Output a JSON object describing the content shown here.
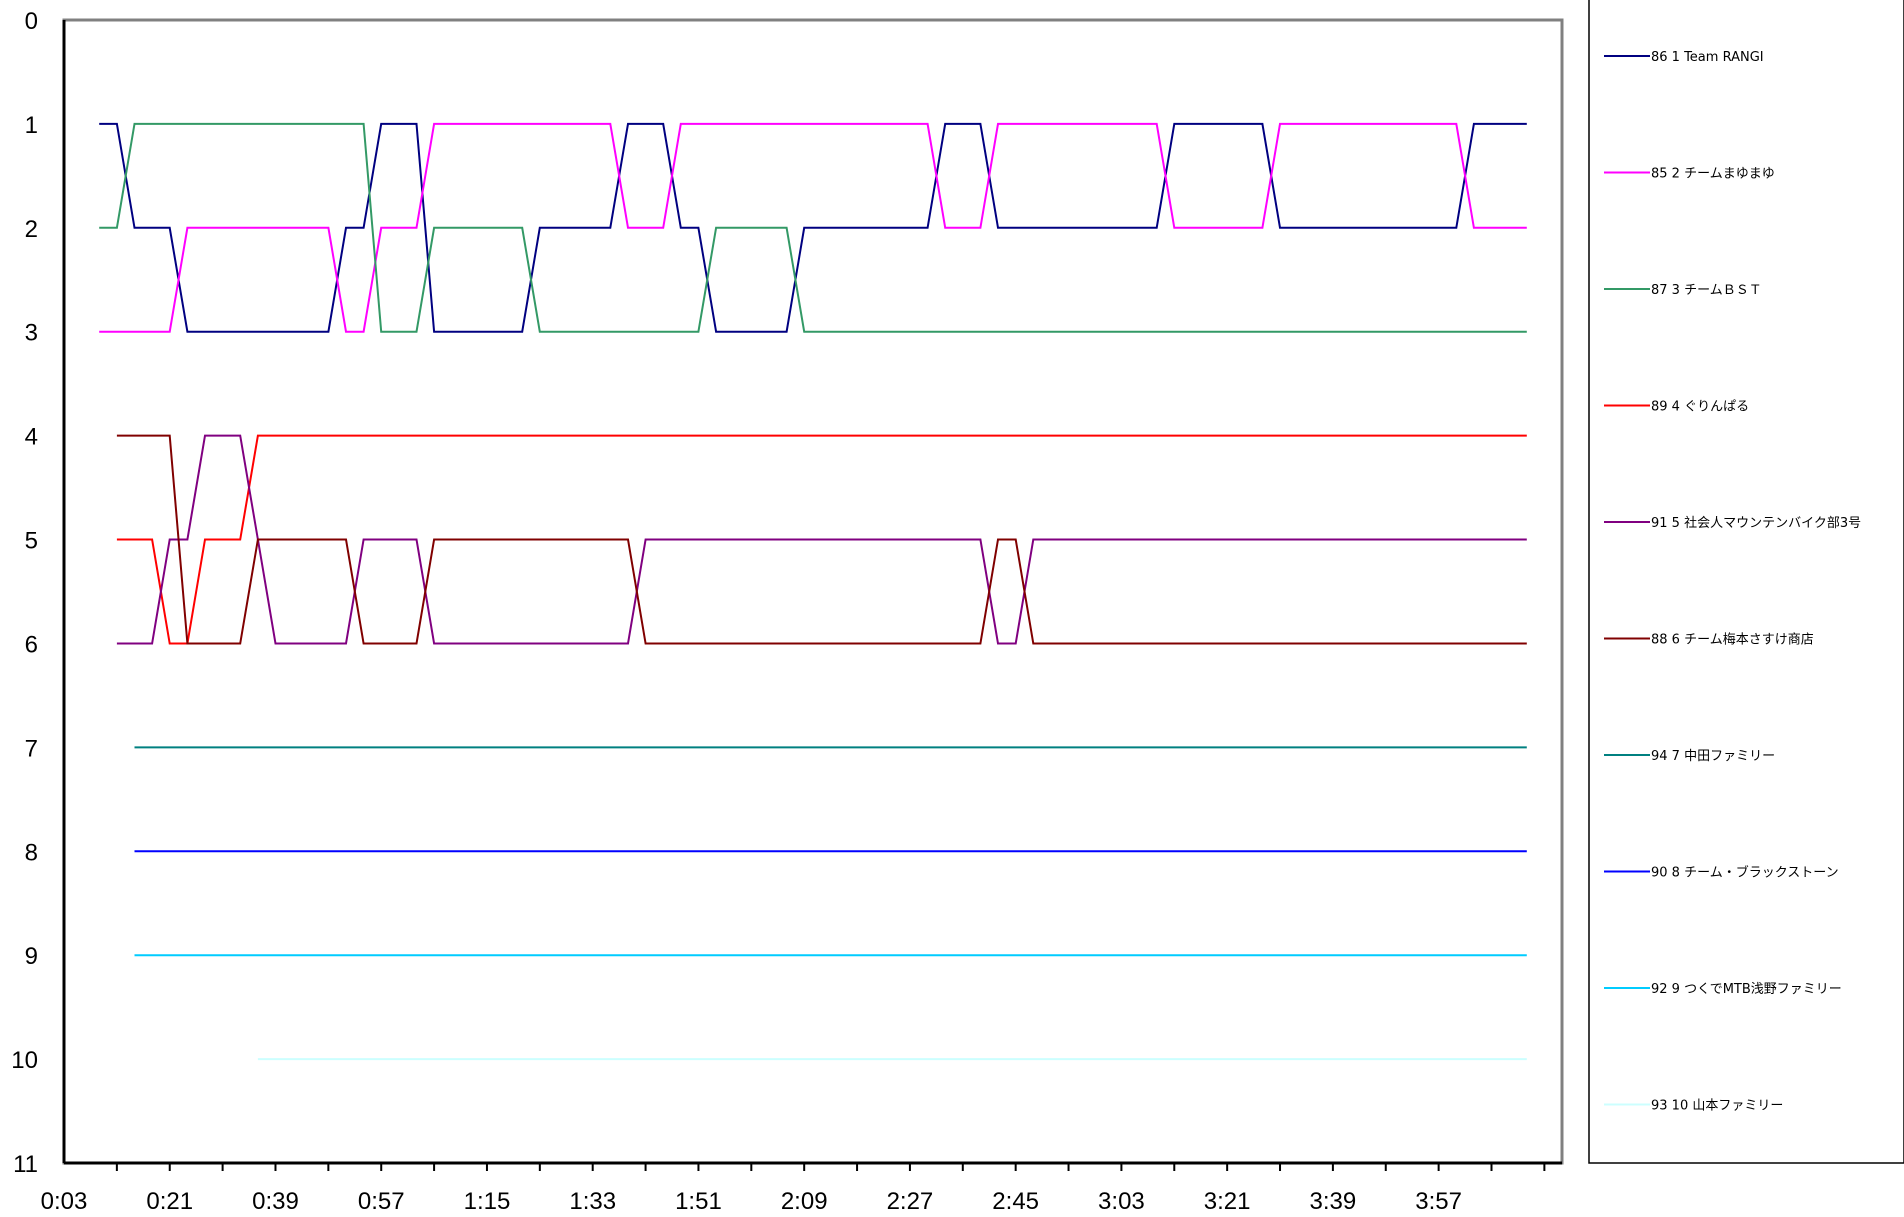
{
  "chart_data": {
    "type": "line",
    "title": "",
    "xlabel": "",
    "ylabel": "",
    "y_inverted": true,
    "ylim": [
      0,
      11
    ],
    "yticks": [
      "0",
      "1",
      "2",
      "3",
      "4",
      "5",
      "6",
      "7",
      "8",
      "9",
      "10",
      "11"
    ],
    "xticks": [
      "0:03",
      "0:21",
      "0:39",
      "0:57",
      "1:15",
      "1:33",
      "1:51",
      "2:09",
      "2:27",
      "2:45",
      "3:03",
      "3:21",
      "3:39",
      "3:57"
    ],
    "legend_position": "right",
    "grid": false,
    "x": [
      "0:09",
      "0:12",
      "0:15",
      "0:18",
      "0:21",
      "0:24",
      "0:27",
      "0:30",
      "0:33",
      "0:36",
      "0:39",
      "0:42",
      "0:45",
      "0:48",
      "0:51",
      "0:54",
      "0:57",
      "1:00",
      "1:03",
      "1:06",
      "1:09",
      "1:12",
      "1:15",
      "1:18",
      "1:21",
      "1:24",
      "1:27",
      "1:30",
      "1:33",
      "1:36",
      "1:39",
      "1:42",
      "1:45",
      "1:48",
      "1:51",
      "1:54",
      "1:57",
      "2:00",
      "2:03",
      "2:06",
      "2:09",
      "2:12",
      "2:15",
      "2:18",
      "2:21",
      "2:24",
      "2:27",
      "2:30",
      "2:33",
      "2:36",
      "2:39",
      "2:42",
      "2:45",
      "2:48",
      "2:51",
      "2:54",
      "2:57",
      "3:00",
      "3:03",
      "3:06",
      "3:09",
      "3:12",
      "3:15",
      "3:18",
      "3:21",
      "3:24",
      "3:27",
      "3:30",
      "3:33",
      "3:36",
      "3:39",
      "3:42",
      "3:45",
      "3:48",
      "3:51",
      "3:54",
      "3:57",
      "4:00",
      "4:03",
      "4:06",
      "4:09",
      "4:12"
    ],
    "series": [
      {
        "name": "86 1 Team RANGI",
        "color": "#000080",
        "values": [
          1,
          1,
          2,
          2,
          2,
          3,
          3,
          3,
          3,
          3,
          3,
          3,
          3,
          3,
          2,
          2,
          1,
          1,
          1,
          3,
          3,
          3,
          3,
          3,
          3,
          2,
          2,
          2,
          2,
          2,
          1,
          1,
          1,
          2,
          2,
          3,
          3,
          3,
          3,
          3,
          2,
          2,
          2,
          2,
          2,
          2,
          2,
          2,
          1,
          1,
          1,
          2,
          2,
          2,
          2,
          2,
          2,
          2,
          2,
          2,
          2,
          1,
          1,
          1,
          1,
          1,
          1,
          2,
          2,
          2,
          2,
          2,
          2,
          2,
          2,
          2,
          2,
          2,
          1,
          1,
          1,
          1
        ]
      },
      {
        "name": "85 2 チームまゆまゆ",
        "color": "#FF00FF",
        "values": [
          3,
          3,
          3,
          3,
          3,
          2,
          2,
          2,
          2,
          2,
          2,
          2,
          2,
          2,
          3,
          3,
          2,
          2,
          2,
          1,
          1,
          1,
          1,
          1,
          1,
          1,
          1,
          1,
          1,
          1,
          2,
          2,
          2,
          1,
          1,
          1,
          1,
          1,
          1,
          1,
          1,
          1,
          1,
          1,
          1,
          1,
          1,
          1,
          2,
          2,
          2,
          1,
          1,
          1,
          1,
          1,
          1,
          1,
          1,
          1,
          1,
          2,
          2,
          2,
          2,
          2,
          2,
          1,
          1,
          1,
          1,
          1,
          1,
          1,
          1,
          1,
          1,
          1,
          2,
          2,
          2,
          2
        ]
      },
      {
        "name": "87 3 チームＢＳＴ",
        "color": "#339966",
        "values": [
          2,
          2,
          1,
          1,
          1,
          1,
          1,
          1,
          1,
          1,
          1,
          1,
          1,
          1,
          1,
          1,
          3,
          3,
          3,
          2,
          2,
          2,
          2,
          2,
          2,
          3,
          3,
          3,
          3,
          3,
          3,
          3,
          3,
          3,
          3,
          2,
          2,
          2,
          2,
          2,
          3,
          3,
          3,
          3,
          3,
          3,
          3,
          3,
          3,
          3,
          3,
          3,
          3,
          3,
          3,
          3,
          3,
          3,
          3,
          3,
          3,
          3,
          3,
          3,
          3,
          3,
          3,
          3,
          3,
          3,
          3,
          3,
          3,
          3,
          3,
          3,
          3,
          3,
          3,
          3,
          3,
          3
        ]
      },
      {
        "name": "89 4 ぐりんぱる",
        "color": "#FF0000",
        "values": [
          null,
          5,
          5,
          5,
          6,
          6,
          5,
          5,
          5,
          4,
          4,
          4,
          4,
          4,
          4,
          4,
          4,
          4,
          4,
          4,
          4,
          4,
          4,
          4,
          4,
          4,
          4,
          4,
          4,
          4,
          4,
          4,
          4,
          4,
          4,
          4,
          4,
          4,
          4,
          4,
          4,
          4,
          4,
          4,
          4,
          4,
          4,
          4,
          4,
          4,
          4,
          4,
          4,
          4,
          4,
          4,
          4,
          4,
          4,
          4,
          4,
          4,
          4,
          4,
          4,
          4,
          4,
          4,
          4,
          4,
          4,
          4,
          4,
          4,
          4,
          4,
          4,
          4,
          4,
          4,
          4,
          4
        ]
      },
      {
        "name": "91 5 社会人マウンテンバイク部3号",
        "color": "#800080",
        "values": [
          null,
          6,
          6,
          6,
          5,
          5,
          4,
          4,
          4,
          5,
          6,
          6,
          6,
          6,
          6,
          5,
          5,
          5,
          5,
          6,
          6,
          6,
          6,
          6,
          6,
          6,
          6,
          6,
          6,
          6,
          6,
          5,
          5,
          5,
          5,
          5,
          5,
          5,
          5,
          5,
          5,
          5,
          5,
          5,
          5,
          5,
          5,
          5,
          5,
          5,
          5,
          6,
          6,
          5,
          5,
          5,
          5,
          5,
          5,
          5,
          5,
          5,
          5,
          5,
          5,
          5,
          5,
          5,
          5,
          5,
          5,
          5,
          5,
          5,
          5,
          5,
          5,
          5,
          5,
          5,
          5,
          5
        ]
      },
      {
        "name": "88 6 チーム梅本さすけ商店",
        "color": "#800000",
        "values": [
          null,
          4,
          4,
          4,
          4,
          6,
          6,
          6,
          6,
          5,
          5,
          5,
          5,
          5,
          5,
          6,
          6,
          6,
          6,
          5,
          5,
          5,
          5,
          5,
          5,
          5,
          5,
          5,
          5,
          5,
          5,
          6,
          6,
          6,
          6,
          6,
          6,
          6,
          6,
          6,
          6,
          6,
          6,
          6,
          6,
          6,
          6,
          6,
          6,
          6,
          6,
          5,
          5,
          6,
          6,
          6,
          6,
          6,
          6,
          6,
          6,
          6,
          6,
          6,
          6,
          6,
          6,
          6,
          6,
          6,
          6,
          6,
          6,
          6,
          6,
          6,
          6,
          6,
          6,
          6,
          6,
          6
        ]
      },
      {
        "name": "94 7 中田ファミリー",
        "color": "#008080",
        "values": [
          null,
          null,
          7,
          7,
          7,
          7,
          7,
          7,
          7,
          7,
          7,
          7,
          7,
          7,
          7,
          7,
          7,
          7,
          7,
          7,
          7,
          7,
          7,
          7,
          7,
          7,
          7,
          7,
          7,
          7,
          7,
          7,
          7,
          7,
          7,
          7,
          7,
          7,
          7,
          7,
          7,
          7,
          7,
          7,
          7,
          7,
          7,
          7,
          7,
          7,
          7,
          7,
          7,
          7,
          7,
          7,
          7,
          7,
          7,
          7,
          7,
          7,
          7,
          7,
          7,
          7,
          7,
          7,
          7,
          7,
          7,
          7,
          7,
          7,
          7,
          7,
          7,
          7,
          7,
          7,
          7,
          7
        ]
      },
      {
        "name": "90 8 チーム・ブラックストーン",
        "color": "#0000FF",
        "values": [
          null,
          null,
          8,
          8,
          8,
          8,
          8,
          8,
          8,
          8,
          8,
          8,
          8,
          8,
          8,
          8,
          8,
          8,
          8,
          8,
          8,
          8,
          8,
          8,
          8,
          8,
          8,
          8,
          8,
          8,
          8,
          8,
          8,
          8,
          8,
          8,
          8,
          8,
          8,
          8,
          8,
          8,
          8,
          8,
          8,
          8,
          8,
          8,
          8,
          8,
          8,
          8,
          8,
          8,
          8,
          8,
          8,
          8,
          8,
          8,
          8,
          8,
          8,
          8,
          8,
          8,
          8,
          8,
          8,
          8,
          8,
          8,
          8,
          8,
          8,
          8,
          8,
          8,
          8,
          8,
          8,
          8
        ]
      },
      {
        "name": "92 9 つくでMTB浅野ファミリー",
        "color": "#00CCFF",
        "values": [
          null,
          null,
          9,
          9,
          9,
          9,
          9,
          9,
          9,
          9,
          9,
          9,
          9,
          9,
          9,
          9,
          9,
          9,
          9,
          9,
          9,
          9,
          9,
          9,
          9,
          9,
          9,
          9,
          9,
          9,
          9,
          9,
          9,
          9,
          9,
          9,
          9,
          9,
          9,
          9,
          9,
          9,
          9,
          9,
          9,
          9,
          9,
          9,
          9,
          9,
          9,
          9,
          9,
          9,
          9,
          9,
          9,
          9,
          9,
          9,
          9,
          9,
          9,
          9,
          9,
          9,
          9,
          9,
          9,
          9,
          9,
          9,
          9,
          9,
          9,
          9,
          9,
          9,
          9,
          9,
          9,
          9
        ]
      },
      {
        "name": "93 10 山本ファミリー",
        "color": "#CCFFFF",
        "values": [
          null,
          null,
          null,
          null,
          null,
          null,
          null,
          null,
          null,
          10,
          10,
          10,
          10,
          10,
          10,
          10,
          10,
          10,
          10,
          10,
          10,
          10,
          10,
          10,
          10,
          10,
          10,
          10,
          10,
          10,
          10,
          10,
          10,
          10,
          10,
          10,
          10,
          10,
          10,
          10,
          10,
          10,
          10,
          10,
          10,
          10,
          10,
          10,
          10,
          10,
          10,
          10,
          10,
          10,
          10,
          10,
          10,
          10,
          10,
          10,
          10,
          10,
          10,
          10,
          10,
          10,
          10,
          10,
          10,
          10,
          10,
          10,
          10,
          10,
          10,
          10,
          10,
          10,
          10,
          10,
          10,
          10
        ]
      }
    ]
  }
}
